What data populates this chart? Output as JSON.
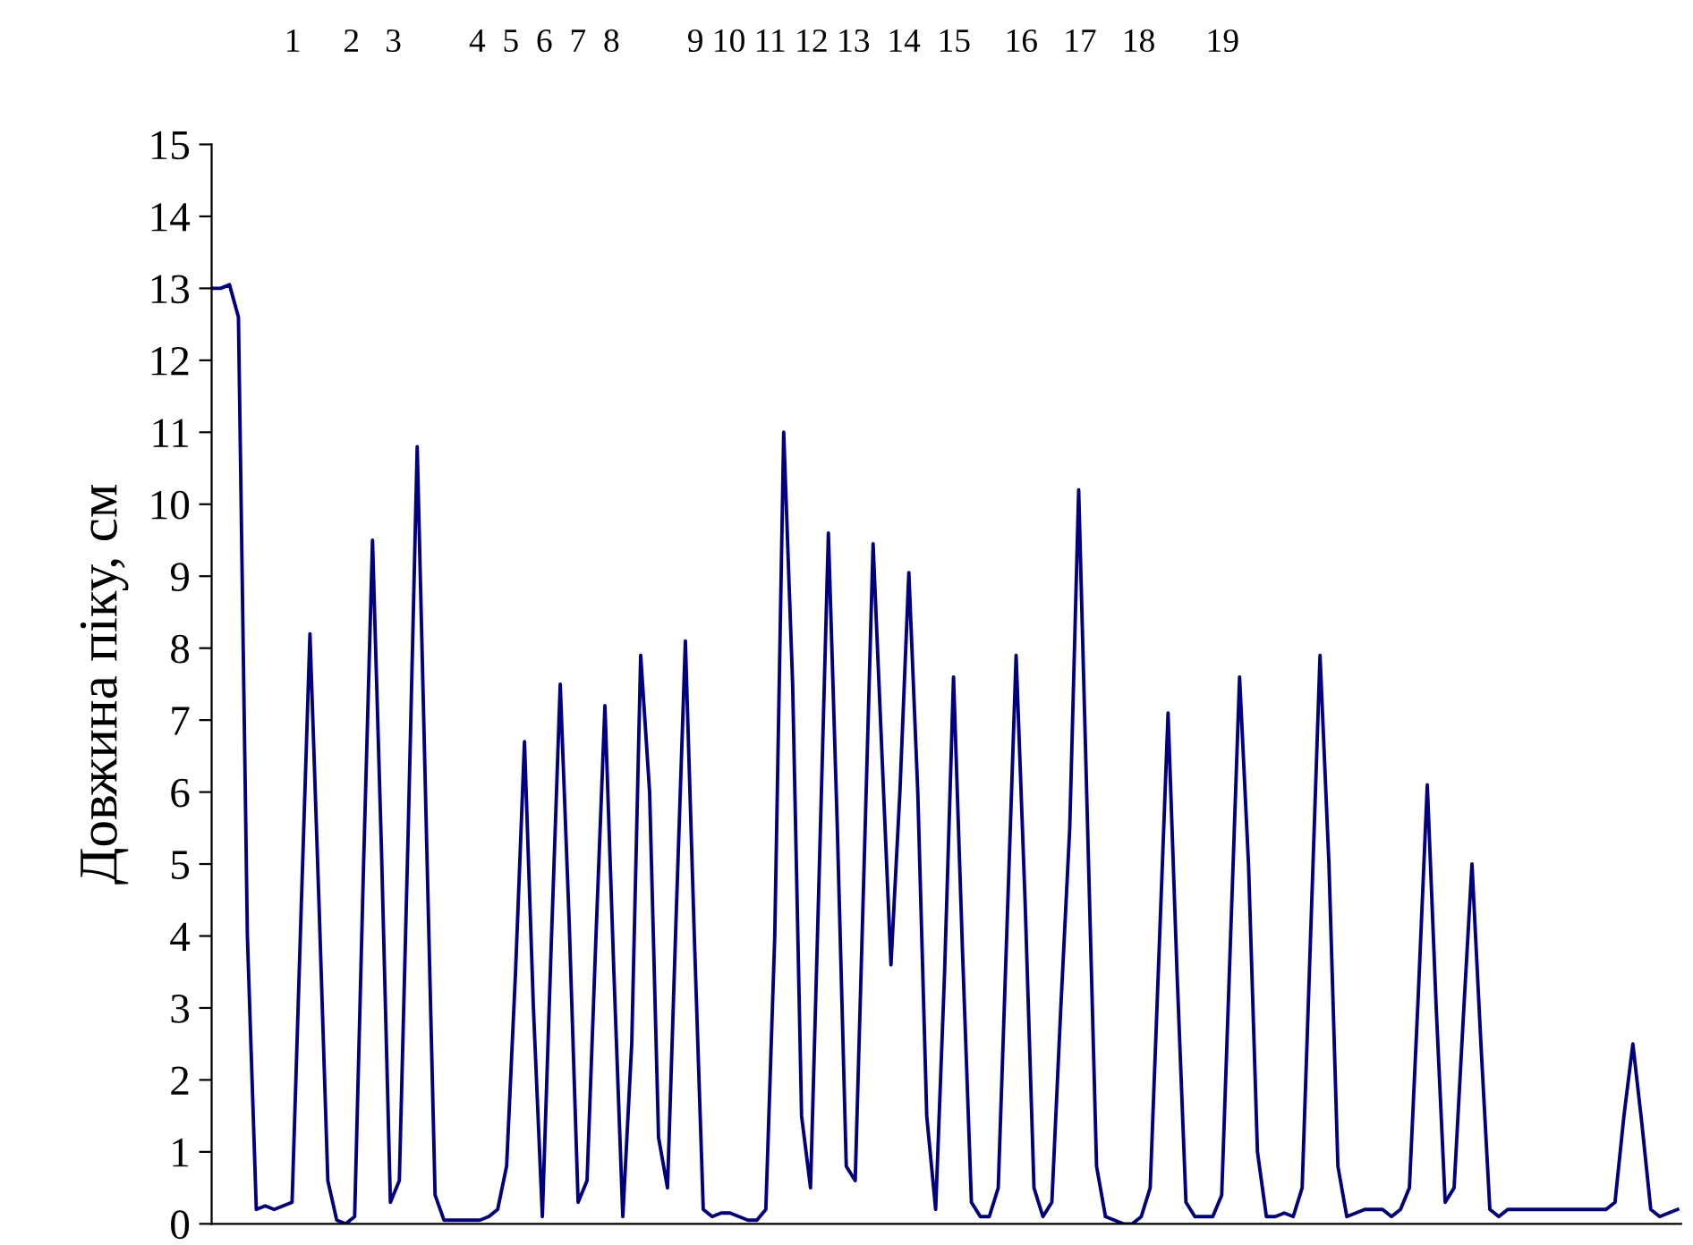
{
  "chart_data": {
    "type": "line",
    "ylabel": "Довжина піку, см",
    "annotations": [
      "1     2   3        4  5  6  7  8        9 10 11 12 13  14  15    16   17   18      19"
    ],
    "categories": [
      null,
      null,
      null,
      null,
      null,
      null,
      null,
      null,
      null,
      null,
      null,
      null,
      null,
      null,
      null,
      null,
      null,
      null,
      null,
      null,
      null,
      null,
      null,
      null,
      null,
      null,
      null,
      null,
      null,
      null,
      null,
      null,
      null,
      null,
      null,
      null,
      null,
      null,
      null,
      null,
      null,
      null,
      null,
      null,
      null,
      null,
      null,
      null,
      null,
      null,
      null,
      null,
      null,
      null,
      null,
      null,
      null,
      null,
      null,
      null,
      null,
      null,
      null,
      null,
      null,
      null,
      null,
      null,
      null,
      null,
      null,
      null,
      null,
      null,
      null,
      null,
      null,
      null,
      null,
      null,
      null,
      null,
      null,
      null,
      null,
      null,
      null,
      null,
      null,
      null,
      null,
      null,
      null,
      null,
      null,
      null,
      null,
      null,
      null,
      null,
      null,
      null,
      null,
      null,
      null,
      null,
      null,
      null,
      null,
      null,
      null,
      null,
      null,
      null,
      null,
      null,
      null,
      null,
      null,
      null,
      null,
      null,
      null,
      null,
      null,
      null,
      null,
      null,
      null,
      null,
      null,
      null,
      null,
      null,
      null,
      null,
      null,
      null,
      null,
      null,
      null,
      null,
      null,
      null,
      null,
      null,
      null,
      null,
      null,
      null,
      null,
      null,
      null,
      null,
      null,
      null,
      null,
      null,
      null,
      null,
      null,
      null,
      null,
      null,
      null
    ],
    "series": [
      {
        "color": "#000080",
        "values": [
          13.0,
          13.0,
          13.05,
          12.6,
          4.0,
          0.2,
          0.25,
          0.2,
          0.25,
          0.3,
          4.3,
          8.2,
          4.5,
          0.6,
          0.05,
          0.0,
          0.1,
          5.0,
          9.5,
          5.2,
          0.3,
          0.6,
          5.5,
          10.8,
          5.6,
          0.4,
          0.05,
          0.05,
          0.05,
          0.05,
          0.05,
          0.1,
          0.2,
          0.8,
          3.5,
          6.7,
          3.0,
          0.1,
          3.9,
          7.5,
          4.2,
          0.3,
          0.6,
          4.0,
          7.2,
          3.5,
          0.1,
          2.5,
          7.9,
          6.0,
          1.2,
          0.5,
          4.4,
          8.1,
          4.0,
          0.2,
          0.1,
          0.15,
          0.15,
          0.1,
          0.05,
          0.05,
          0.2,
          4.0,
          11.0,
          7.5,
          1.5,
          0.5,
          5.0,
          9.6,
          5.5,
          0.8,
          0.6,
          5.0,
          9.45,
          6.5,
          3.6,
          6.0,
          9.05,
          6.0,
          1.5,
          0.2,
          3.5,
          7.6,
          3.8,
          0.3,
          0.1,
          0.1,
          0.5,
          4.2,
          7.9,
          4.5,
          0.5,
          0.1,
          0.3,
          3.0,
          5.5,
          10.2,
          5.5,
          0.8,
          0.1,
          0.05,
          0.0,
          0.0,
          0.1,
          0.5,
          3.8,
          7.1,
          3.5,
          0.3,
          0.1,
          0.1,
          0.1,
          0.4,
          4.0,
          7.6,
          5.0,
          1.0,
          0.1,
          0.1,
          0.15,
          0.1,
          0.5,
          4.2,
          7.9,
          5.0,
          0.8,
          0.1,
          0.15,
          0.2,
          0.2,
          0.2,
          0.1,
          0.2,
          0.5,
          3.2,
          6.1,
          3.0,
          0.3,
          0.5,
          2.8,
          5.0,
          2.5,
          0.2,
          0.1,
          0.2,
          0.2,
          0.2,
          0.2,
          0.2,
          0.2,
          0.2,
          0.2,
          0.2,
          0.2,
          0.2,
          0.2,
          0.3,
          1.5,
          2.5,
          1.4,
          0.2,
          0.1,
          0.15,
          0.2
        ]
      }
    ],
    "ylim": [
      0,
      15
    ],
    "yticks": [
      0,
      1,
      2,
      3,
      4,
      5,
      6,
      7,
      8,
      9,
      10,
      11,
      12,
      13,
      14,
      15
    ],
    "tick_labels": "y",
    "marker": "none",
    "line_style": "solid"
  }
}
